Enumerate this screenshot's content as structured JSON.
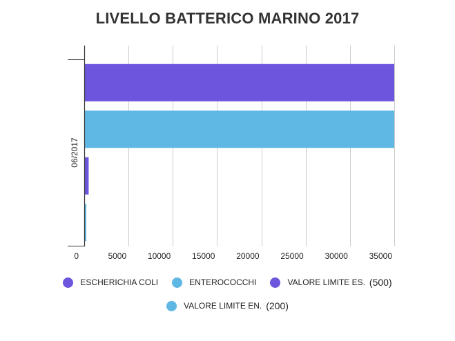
{
  "chart_data": {
    "type": "bar",
    "orientation": "horizontal",
    "title": "LIVELLO BATTERICO MARINO 2017",
    "categories": [
      "06/2017"
    ],
    "series": [
      {
        "name": "ESCHERICHIA COLI",
        "values": [
          35000
        ],
        "color": "#6d55dd"
      },
      {
        "name": "ENTEROCOCCHI",
        "values": [
          35000
        ],
        "color": "#5fb7e4"
      },
      {
        "name": "VALORE LIMITE ES.",
        "values": [
          500
        ],
        "color": "#6d55dd"
      },
      {
        "name": "VALORE LIMITE EN.",
        "values": [
          200
        ],
        "color": "#5fb7e4"
      }
    ],
    "xticks": [
      0,
      5000,
      10000,
      15000,
      20000,
      25000,
      30000,
      35000
    ],
    "xlim": [
      0,
      35000
    ],
    "grid": true,
    "legend_position": "bottom"
  },
  "legend": [
    {
      "label": "ESCHERICHIA COLI",
      "value": "",
      "color": "#6d55dd"
    },
    {
      "label": "ENTEROCOCCHI",
      "value": "",
      "color": "#5fb7e4"
    },
    {
      "label": "VALORE LIMITE ES.",
      "value": "(500)",
      "color": "#6d55dd"
    },
    {
      "label": "VALORE LIMITE EN.",
      "value": "(200)",
      "color": "#5fb7e4"
    }
  ]
}
